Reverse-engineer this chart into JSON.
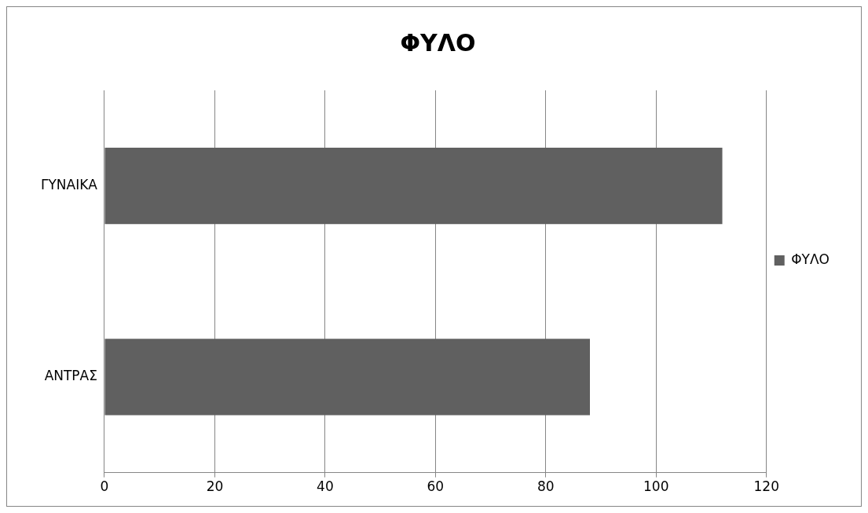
{
  "chart_data": {
    "type": "bar",
    "orientation": "horizontal",
    "title": "ΦΥΛΟ",
    "categories": [
      "ΓΥΝΑΙΚΑ",
      "ΑΝΤΡΑΣ"
    ],
    "series": [
      {
        "name": "ΦΥΛΟ",
        "color": "#606060",
        "values": [
          112,
          88
        ]
      }
    ],
    "xlim": [
      0,
      120
    ],
    "xticks": [
      0,
      20,
      40,
      60,
      80,
      100,
      120
    ],
    "grid": "x",
    "legend": "right"
  }
}
